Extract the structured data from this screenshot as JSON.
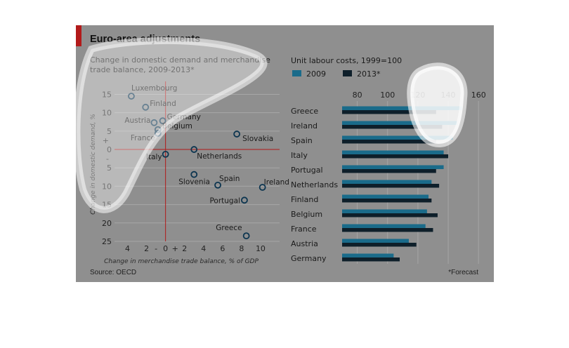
{
  "title": "Euro-area adjustments",
  "source": "Source: OECD",
  "footnote": "*Forecast",
  "chart_data": [
    {
      "type": "scatter",
      "title": "Change in domestic demand and merchandise trade balance, 2009-2013*",
      "xlabel": "Change in merchandise trade balance, % of GDP",
      "ylabel": "Change in domestic demand, %",
      "xlim": [
        -5,
        12
      ],
      "ylim": [
        -17,
        25
      ],
      "y_inverted": true,
      "x_ticks": [
        -4,
        -2,
        0,
        2,
        4,
        6,
        8,
        10
      ],
      "x_tick_labels": [
        "4",
        "2",
        "0",
        "2",
        "4",
        "6",
        "8",
        "10"
      ],
      "x_tick_signs": [
        "-",
        "+"
      ],
      "y_ticks": [
        -15,
        -10,
        -5,
        0,
        5,
        10,
        15,
        20,
        25
      ],
      "y_tick_labels": [
        "15",
        "10",
        "5",
        "0",
        "5",
        "10",
        "15",
        "20",
        "25"
      ],
      "y_tick_signs": [
        "+",
        "-"
      ],
      "points": [
        {
          "label": "Luxembourg",
          "x": -3.6,
          "y": -14.5
        },
        {
          "label": "Finland",
          "x": -2.1,
          "y": -11.5
        },
        {
          "label": "Austria",
          "x": -1.2,
          "y": -7.3
        },
        {
          "label": "Germany",
          "x": -0.3,
          "y": -7.8
        },
        {
          "label": "Belgium",
          "x": -0.8,
          "y": -5.4
        },
        {
          "label": "France",
          "x": -0.8,
          "y": -4.4
        },
        {
          "label": "Slovakia",
          "x": 7.5,
          "y": -4.2
        },
        {
          "label": "Netherlands",
          "x": 3.0,
          "y": 0.0
        },
        {
          "label": "Italy",
          "x": 0.0,
          "y": 1.3
        },
        {
          "label": "Slovenia",
          "x": 3.0,
          "y": 6.8
        },
        {
          "label": "Spain",
          "x": 5.5,
          "y": 9.7
        },
        {
          "label": "Ireland",
          "x": 10.2,
          "y": 10.3
        },
        {
          "label": "Portugal",
          "x": 8.3,
          "y": 13.8
        },
        {
          "label": "Greece",
          "x": 8.5,
          "y": 23.5
        }
      ]
    },
    {
      "type": "bar",
      "orientation": "horizontal",
      "title": "Unit labour costs, 1999=100",
      "xlim": [
        70,
        165
      ],
      "x_ticks": [
        80,
        100,
        120,
        140,
        160
      ],
      "categories": [
        "Greece",
        "Ireland",
        "Spain",
        "Italy",
        "Portugal",
        "Netherlands",
        "Finland",
        "Belgium",
        "France",
        "Austria",
        "Germany"
      ],
      "series": [
        {
          "name": "2009",
          "color": "#1a6b8a",
          "values": [
            149,
            146,
            143,
            137,
            137,
            129,
            127,
            126,
            125,
            114,
            104
          ]
        },
        {
          "name": "2013*",
          "color": "#0e1f2a",
          "values": [
            132,
            136,
            132,
            140,
            132,
            134,
            129,
            133,
            130,
            119,
            108
          ]
        }
      ]
    }
  ]
}
